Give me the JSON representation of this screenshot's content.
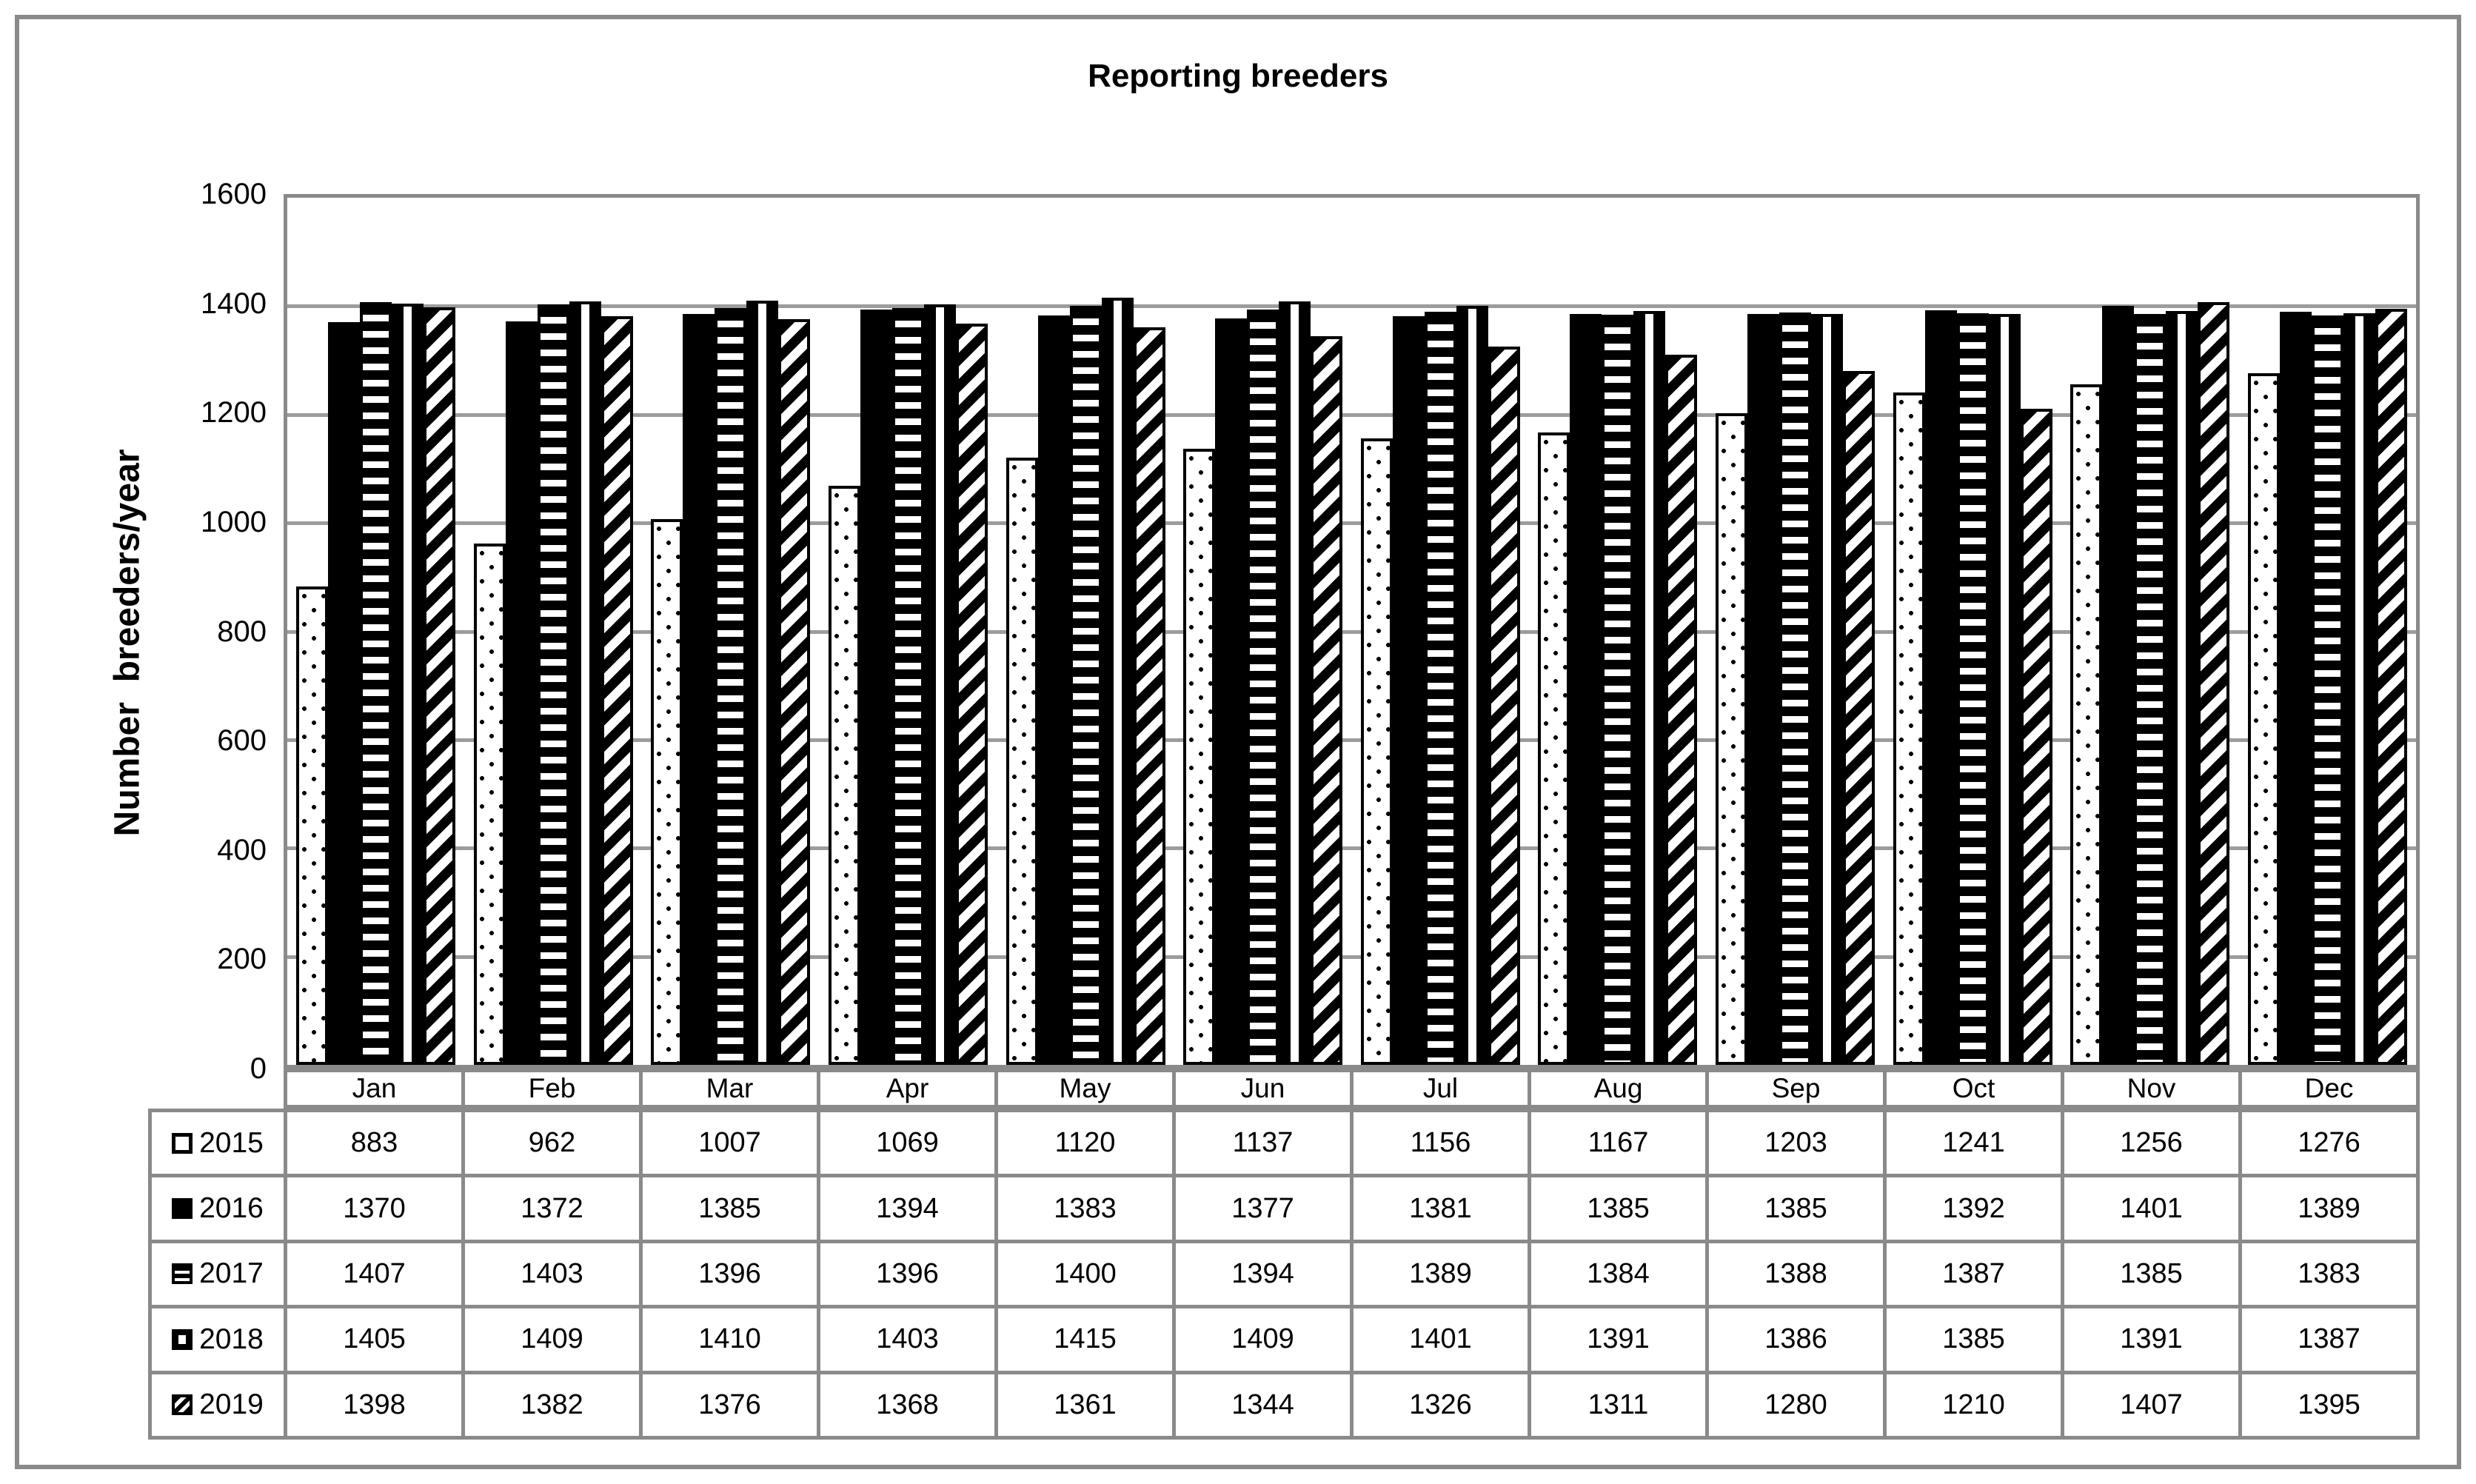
{
  "figure": {
    "title": "Reporting breeders",
    "y_axis_label": "Number  breeders/year"
  },
  "chart_data": {
    "type": "bar",
    "title": "Reporting breeders",
    "xlabel": "",
    "ylabel": "Number breeders/year",
    "ylim": [
      0,
      1600
    ],
    "ytick_step": 200,
    "yticks": [
      0,
      200,
      400,
      600,
      800,
      1000,
      1200,
      1400,
      1600
    ],
    "grid": true,
    "legend_position": "table-left",
    "categories": [
      "Jan",
      "Feb",
      "Mar",
      "Apr",
      "May",
      "Jun",
      "Jul",
      "Aug",
      "Sep",
      "Oct",
      "Nov",
      "Dec"
    ],
    "series": [
      {
        "name": "2015",
        "pattern": "dotted",
        "values": [
          883,
          962,
          1007,
          1069,
          1120,
          1137,
          1156,
          1167,
          1203,
          1241,
          1256,
          1276
        ]
      },
      {
        "name": "2016",
        "pattern": "solid",
        "values": [
          1370,
          1372,
          1385,
          1394,
          1383,
          1377,
          1381,
          1385,
          1385,
          1392,
          1401,
          1389
        ]
      },
      {
        "name": "2017",
        "pattern": "horizontal-stripes",
        "values": [
          1407,
          1403,
          1396,
          1396,
          1400,
          1394,
          1389,
          1384,
          1388,
          1387,
          1385,
          1383
        ]
      },
      {
        "name": "2018",
        "pattern": "vertical-stripes",
        "values": [
          1405,
          1409,
          1410,
          1403,
          1415,
          1409,
          1401,
          1391,
          1386,
          1385,
          1391,
          1387
        ]
      },
      {
        "name": "2019",
        "pattern": "diagonal-stripes",
        "values": [
          1398,
          1382,
          1376,
          1368,
          1361,
          1344,
          1326,
          1311,
          1280,
          1210,
          1407,
          1395
        ]
      }
    ],
    "colors": {
      "bar_fill": "#000000",
      "bar_bg": "#ffffff",
      "gridline": "#9c9c9c",
      "table_border": "#8a8a8a",
      "text": "#000000",
      "background": "#ffffff"
    }
  }
}
